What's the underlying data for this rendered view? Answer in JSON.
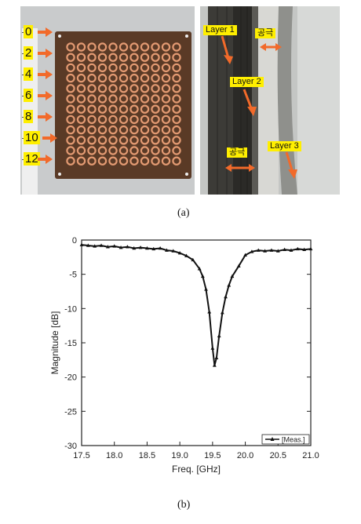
{
  "figure": {
    "caption_a": "(a)",
    "caption_b": "(b)"
  },
  "photo_left": {
    "ruler_labels": [
      "0",
      "2",
      "4",
      "6",
      "8",
      "10",
      "12"
    ]
  },
  "photo_right": {
    "labels": {
      "layer1": "Layer 1",
      "layer2": "Layer 2",
      "layer3": "Layer 3",
      "gap_top": "공극",
      "gap_bottom": "공극"
    }
  },
  "chart_data": {
    "type": "line",
    "xlabel": "Freq. [GHz]",
    "ylabel": "Magnitude [dB]",
    "xlim": [
      17.5,
      21.0
    ],
    "ylim": [
      -30,
      0
    ],
    "x_ticks": [
      "17.5",
      "18.0",
      "18.5",
      "19.0",
      "19.5",
      "20.0",
      "20.5",
      "21.0"
    ],
    "y_ticks": [
      "0",
      "-5",
      "-10",
      "-15",
      "-20",
      "-25",
      "-30"
    ],
    "legend_position": "bottom-right",
    "grid": false,
    "series": [
      {
        "name": "Meas.",
        "x": [
          17.5,
          17.6,
          17.7,
          17.8,
          17.9,
          18.0,
          18.1,
          18.2,
          18.3,
          18.4,
          18.5,
          18.6,
          18.7,
          18.8,
          18.9,
          19.0,
          19.1,
          19.2,
          19.3,
          19.35,
          19.4,
          19.45,
          19.5,
          19.53,
          19.56,
          19.6,
          19.65,
          19.7,
          19.75,
          19.8,
          19.9,
          20.0,
          20.1,
          20.2,
          20.3,
          20.4,
          20.5,
          20.6,
          20.7,
          20.8,
          20.9,
          21.0
        ],
        "y": [
          -0.7,
          -0.8,
          -0.9,
          -0.8,
          -1.0,
          -0.9,
          -1.1,
          -1.0,
          -1.2,
          -1.1,
          -1.2,
          -1.3,
          -1.2,
          -1.5,
          -1.6,
          -1.9,
          -2.3,
          -2.9,
          -4.2,
          -5.3,
          -7.2,
          -10.5,
          -15.8,
          -18.3,
          -17.2,
          -14.0,
          -10.6,
          -8.3,
          -6.6,
          -5.3,
          -3.8,
          -2.2,
          -1.7,
          -1.5,
          -1.6,
          -1.5,
          -1.6,
          -1.4,
          -1.5,
          -1.3,
          -1.4,
          -1.3
        ]
      }
    ]
  }
}
